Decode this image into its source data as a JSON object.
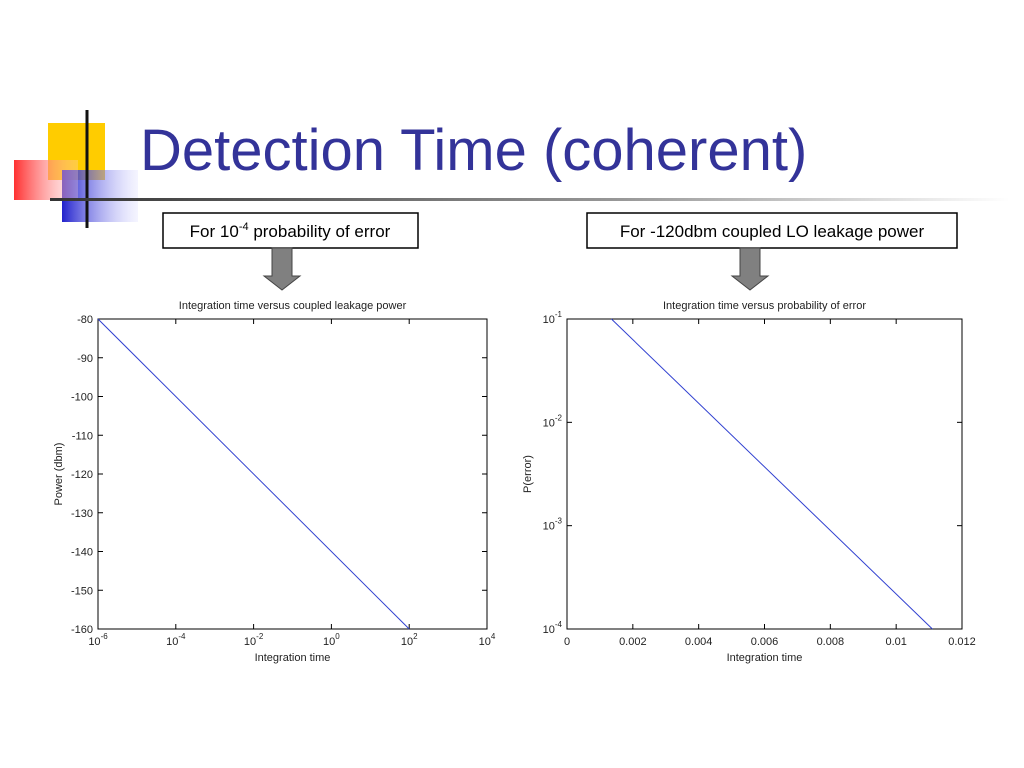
{
  "slide_title": "Detection Time (coherent)",
  "callouts": [
    {
      "text": "For 10",
      "superscript": "-4",
      "text_after": " probability of error"
    },
    {
      "text": "For -120dbm coupled LO leakage power"
    }
  ],
  "chart_data": [
    {
      "type": "line",
      "title": "Integration time versus coupled leakage power",
      "x_label": "Integration time",
      "y_label": "Power (dbm)",
      "x_scale": "log",
      "y_scale": "linear",
      "xlim": [
        1e-06,
        10000
      ],
      "xticks": [
        {
          "value": 1e-06,
          "label": "10",
          "exponent": "-6"
        },
        {
          "value": 0.0001,
          "label": "10",
          "exponent": "-4"
        },
        {
          "value": 0.01,
          "label": "10",
          "exponent": "-2"
        },
        {
          "value": 1,
          "label": "10",
          "exponent": "0"
        },
        {
          "value": 100,
          "label": "10",
          "exponent": "2"
        },
        {
          "value": 10000,
          "label": "10",
          "exponent": "4"
        }
      ],
      "ylim": [
        -160,
        -80
      ],
      "yticks": [
        -160,
        -150,
        -140,
        -130,
        -120,
        -110,
        -100,
        -90,
        -80
      ],
      "series": [
        {
          "color": "#3040d0",
          "x": [
            1e-06,
            100
          ],
          "values": [
            -80,
            -160
          ]
        }
      ]
    },
    {
      "type": "line",
      "title": "Integration time versus probability of error",
      "x_label": "Integration time",
      "y_label": "P(error)",
      "x_scale": "linear",
      "y_scale": "log",
      "xlim": [
        0,
        0.012
      ],
      "xticks": [
        0,
        0.002,
        0.004,
        0.006,
        0.008,
        0.01,
        0.012
      ],
      "ylim": [
        0.0001,
        0.1
      ],
      "yticks": [
        {
          "value": 0.0001,
          "label": "10",
          "exponent": "-4"
        },
        {
          "value": 0.001,
          "label": "10",
          "exponent": "-3"
        },
        {
          "value": 0.01,
          "label": "10",
          "exponent": "-2"
        },
        {
          "value": 0.1,
          "label": "10",
          "exponent": "-1"
        }
      ],
      "series": [
        {
          "color": "#3040d0",
          "x": [
            0.00135,
            0.0111
          ],
          "values": [
            0.1,
            0.0001
          ]
        }
      ]
    }
  ]
}
